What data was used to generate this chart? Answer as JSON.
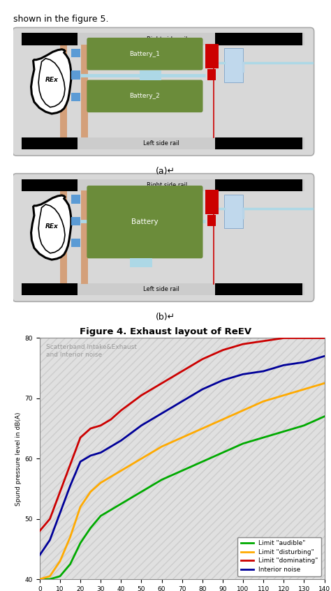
{
  "top_text": "shown in the figure 5.",
  "title": "Figure 4. Exhaust layout of ReEV",
  "chart_annotation": "Scatterband Intake&Exhaust\nand Interior noise",
  "ylabel": "Spund pressure level in dB(A)",
  "xlim": [
    0,
    140
  ],
  "ylim": [
    40,
    80
  ],
  "xticks": [
    0,
    10,
    20,
    30,
    40,
    50,
    60,
    70,
    80,
    90,
    100,
    110,
    120,
    130,
    140
  ],
  "yticks": [
    40,
    50,
    60,
    70,
    80
  ],
  "lines": {
    "audible": {
      "label": "Limit \"audible\"",
      "color": "#00aa00",
      "x": [
        0,
        5,
        10,
        15,
        20,
        25,
        30,
        35,
        40,
        50,
        60,
        70,
        80,
        90,
        100,
        110,
        120,
        130,
        140
      ],
      "y": [
        40.0,
        40.0,
        40.5,
        42.5,
        46.0,
        48.5,
        50.5,
        51.5,
        52.5,
        54.5,
        56.5,
        58.0,
        59.5,
        61.0,
        62.5,
        63.5,
        64.5,
        65.5,
        67.0
      ]
    },
    "disturbing": {
      "label": "Limit \"disturbing\"",
      "color": "#ffaa00",
      "x": [
        0,
        5,
        10,
        15,
        20,
        25,
        30,
        35,
        40,
        50,
        60,
        70,
        80,
        90,
        100,
        110,
        120,
        130,
        140
      ],
      "y": [
        40.0,
        40.5,
        43.0,
        47.0,
        52.0,
        54.5,
        56.0,
        57.0,
        58.0,
        60.0,
        62.0,
        63.5,
        65.0,
        66.5,
        68.0,
        69.5,
        70.5,
        71.5,
        72.5
      ]
    },
    "dominating": {
      "label": "Limit \"dominating\"",
      "color": "#cc0000",
      "x": [
        0,
        5,
        10,
        15,
        20,
        25,
        30,
        35,
        40,
        50,
        60,
        70,
        80,
        90,
        100,
        110,
        120,
        130,
        140
      ],
      "y": [
        48.0,
        50.0,
        54.5,
        59.0,
        63.5,
        65.0,
        65.5,
        66.5,
        68.0,
        70.5,
        72.5,
        74.5,
        76.5,
        78.0,
        79.0,
        79.5,
        80.0,
        80.0,
        80.0
      ]
    },
    "interior": {
      "label": "Interior noise",
      "color": "#000099",
      "x": [
        0,
        5,
        10,
        15,
        20,
        25,
        30,
        35,
        40,
        50,
        60,
        70,
        80,
        90,
        100,
        110,
        120,
        130,
        140
      ],
      "y": [
        44.0,
        46.5,
        51.0,
        55.5,
        59.5,
        60.5,
        61.0,
        62.0,
        63.0,
        65.5,
        67.5,
        69.5,
        71.5,
        73.0,
        74.0,
        74.5,
        75.5,
        76.0,
        77.0
      ]
    }
  },
  "colors": {
    "black": "#000000",
    "dark_gray": "#888888",
    "light_gray": "#c8c8c8",
    "gray_bg": "#d8d8d8",
    "white": "#ffffff",
    "green": "#6b8c3a",
    "red": "#cc0000",
    "blue": "#5b9bd5",
    "light_blue": "#add8e6",
    "light_blue2": "#b8d4e8",
    "orange_tan": "#d4a07a",
    "chart_bg": "#e0e0e0"
  }
}
